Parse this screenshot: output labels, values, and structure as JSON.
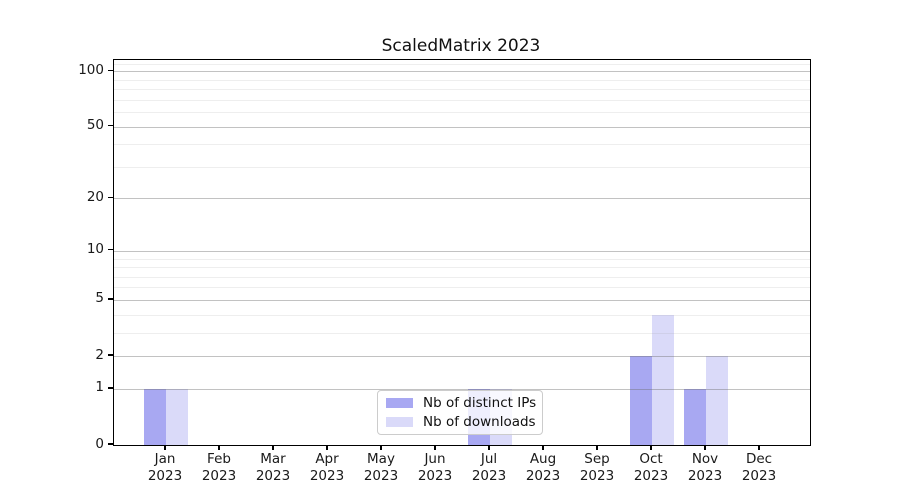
{
  "chart_data": {
    "type": "bar",
    "title": "ScaledMatrix 2023",
    "scale": "log10(1+v)",
    "categories_months": [
      "Jan",
      "Feb",
      "Mar",
      "Apr",
      "May",
      "Jun",
      "Jul",
      "Aug",
      "Sep",
      "Oct",
      "Nov",
      "Dec"
    ],
    "year_label": "2023",
    "series": [
      {
        "name": "Nb of distinct IPs",
        "color": "#a8a8f2",
        "values": [
          1,
          0,
          0,
          0,
          0,
          0,
          1,
          0,
          0,
          2,
          1,
          0
        ]
      },
      {
        "name": "Nb of downloads",
        "color": "#dadaf9",
        "values": [
          1,
          0,
          0,
          0,
          0,
          0,
          1,
          0,
          0,
          4,
          2,
          0
        ]
      }
    ],
    "yticks": [
      0,
      1,
      2,
      5,
      10,
      20,
      50,
      100
    ],
    "ylim": [
      0,
      115
    ],
    "grid": {
      "major_values": [
        1,
        2,
        5,
        10,
        20,
        50,
        100
      ],
      "minor_values": [
        3,
        4,
        6,
        7,
        8,
        9,
        30,
        40,
        60,
        70,
        80,
        90,
        110
      ]
    },
    "legend_position": "lower center",
    "colors": {
      "frame": "#000000",
      "major_grid": "#c9c9c9",
      "minor_grid": "#ececec",
      "text": "#1a1a1a"
    }
  }
}
